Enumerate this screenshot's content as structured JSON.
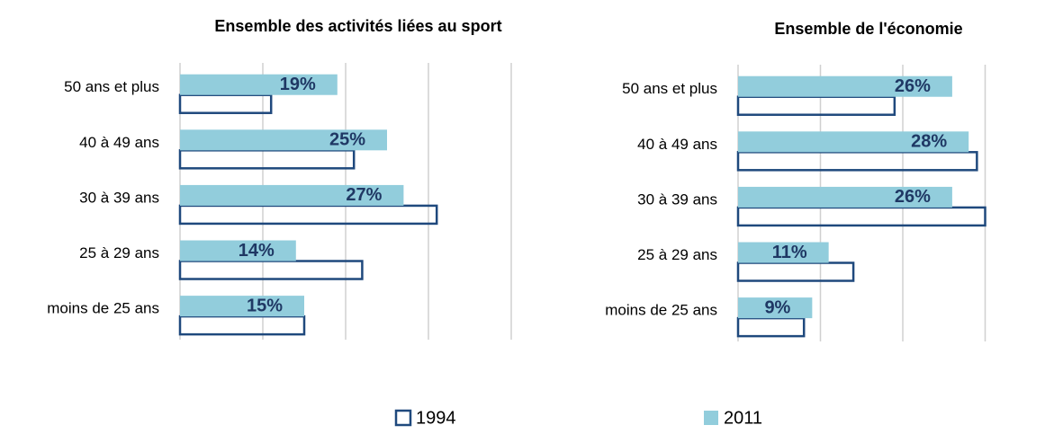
{
  "chart_data": [
    {
      "type": "bar",
      "orientation": "horizontal",
      "title": "Ensemble des activités liées au sport",
      "categories": [
        "50 ans et plus",
        "40 à 49 ans",
        "30 à 39 ans",
        "25 à 29 ans",
        "moins de 25 ans"
      ],
      "series": [
        {
          "name": "1994",
          "color": "#1f497d",
          "style": "outline",
          "values": [
            11,
            21,
            31,
            22,
            15
          ]
        },
        {
          "name": "2011",
          "color": "#92cddc",
          "style": "filled",
          "values": [
            19,
            25,
            27,
            14,
            15
          ],
          "value_labels": [
            "19%",
            "25%",
            "27%",
            "14%",
            "15%"
          ]
        }
      ],
      "xlim": [
        0,
        40
      ],
      "xticks": [
        0,
        10,
        20,
        30,
        40
      ],
      "grid": true,
      "legend": "bottom"
    },
    {
      "type": "bar",
      "orientation": "horizontal",
      "title": "Ensemble de l'économie",
      "categories": [
        "50 ans et plus",
        "40 à 49 ans",
        "30 à 39 ans",
        "25 à 29 ans",
        "moins de 25 ans"
      ],
      "series": [
        {
          "color": "#1f497d",
          "style": "outline",
          "values": [
            19,
            29,
            30,
            14,
            8
          ]
        },
        {
          "color": "#92cddc",
          "style": "filled",
          "values": [
            26,
            28,
            26,
            11,
            9
          ],
          "value_labels": [
            "26%",
            "28%",
            "26%",
            "11%",
            "9%"
          ]
        }
      ],
      "xlim": [
        0,
        30
      ],
      "xticks": [
        0,
        10,
        20,
        30
      ],
      "grid": true
    }
  ]
}
